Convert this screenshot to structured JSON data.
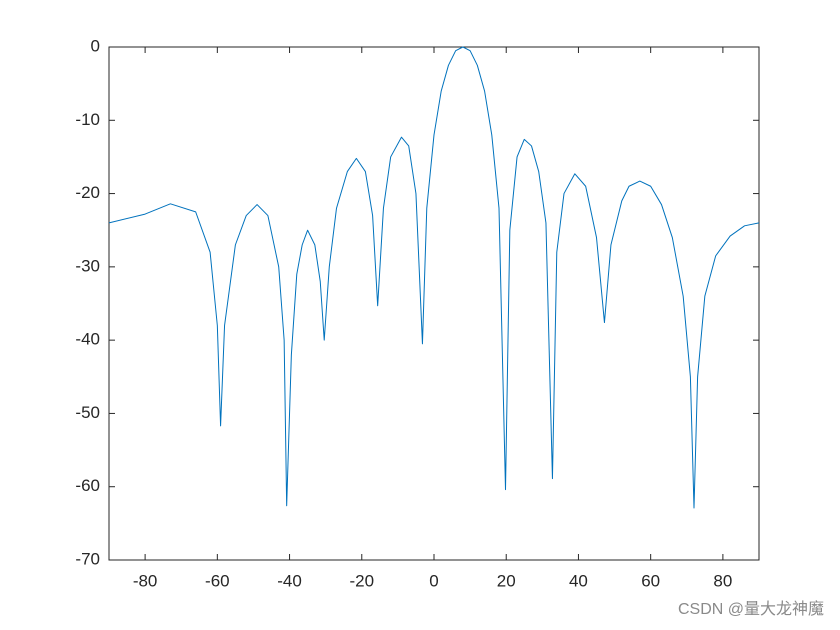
{
  "chart_data": {
    "type": "line",
    "x": [
      -90,
      -80,
      -73,
      -66,
      -62,
      -60,
      -59.1,
      -58,
      -55,
      -52,
      -49,
      -46,
      -43,
      -41.5,
      -40.8,
      -39.5,
      -38,
      -36.5,
      -35,
      -33,
      -31.5,
      -30.4,
      -29,
      -27,
      -24,
      -21.5,
      -19,
      -17,
      -15.6,
      -14,
      -12,
      -9,
      -7,
      -5,
      -3.2,
      -2,
      0,
      2,
      4,
      6,
      8,
      10,
      12,
      14,
      16,
      18,
      19.8,
      21,
      23,
      25,
      27,
      29,
      31,
      32.8,
      34,
      36,
      39,
      42,
      45,
      47.2,
      49,
      52,
      54,
      57,
      60,
      63,
      66,
      69,
      71,
      72,
      73,
      75,
      78,
      82,
      86,
      90
    ],
    "series": [
      {
        "color": "#0072bd",
        "values": [
          -24,
          -22.8,
          -21.4,
          -22.5,
          -28,
          -38,
          -51.7,
          -38,
          -27,
          -23,
          -21.5,
          -23,
          -30,
          -40,
          -62.6,
          -42,
          -31,
          -27,
          -25,
          -27,
          -32,
          -40,
          -30,
          -22,
          -17,
          -15.2,
          -17,
          -23,
          -35.3,
          -22,
          -15,
          -12.3,
          -13.5,
          -20,
          -40.5,
          -22,
          -12,
          -6,
          -2.5,
          -0.5,
          0,
          -0.5,
          -2.5,
          -6,
          -12,
          -22,
          -60.4,
          -25,
          -15,
          -12.6,
          -13.5,
          -17,
          -24,
          -58.9,
          -28,
          -20,
          -17.3,
          -19,
          -26,
          -37.6,
          -27,
          -21,
          -19,
          -18.3,
          -19,
          -21.5,
          -26,
          -34,
          -45,
          -62.9,
          -45,
          -34,
          -28.5,
          -25.8,
          -24.4,
          -24
        ]
      }
    ],
    "xlim": [
      -90,
      90
    ],
    "xticks": [
      -80,
      -60,
      -40,
      -20,
      0,
      20,
      40,
      60,
      80
    ],
    "ylim": [
      -70,
      0
    ],
    "yticks": [
      -70,
      -60,
      -50,
      -40,
      -30,
      -20,
      -10,
      0
    ]
  },
  "watermark": "CSDN @量大龙神魔"
}
